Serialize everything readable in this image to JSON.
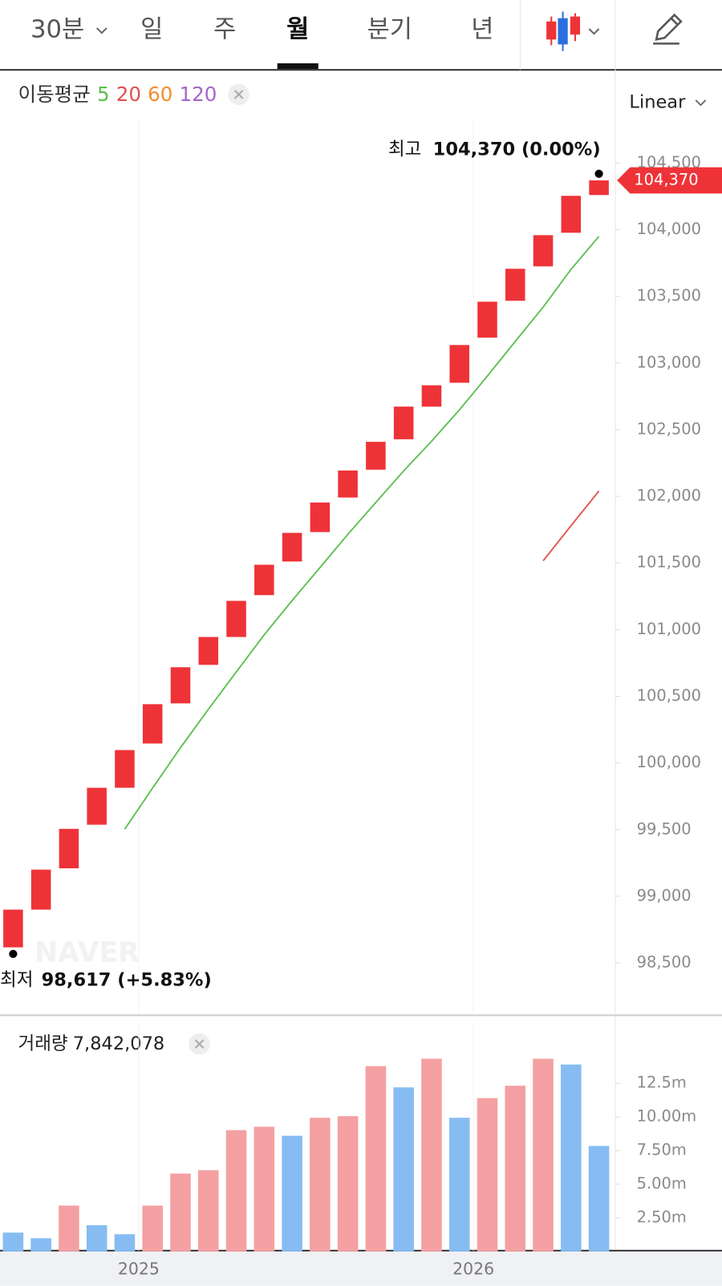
{
  "tabs": [
    "30분",
    "일",
    "주",
    "월",
    "분기",
    "년"
  ],
  "scale_mode": "Linear",
  "chart_data": [
    {
      "type": "candlestick",
      "title": "이동평균",
      "categories": [
        null,
        null,
        null,
        null,
        null,
        null,
        null,
        null,
        null,
        null,
        null,
        null,
        null,
        null,
        null,
        null,
        null,
        null,
        null,
        null,
        null,
        null
      ],
      "open": [
        98617,
        98900,
        99210,
        99537,
        99814,
        100146,
        100447,
        100736,
        100945,
        101259,
        101511,
        101732,
        101991,
        102200,
        102428,
        102673,
        102852,
        103190,
        103467,
        103725,
        103977,
        104260
      ],
      "close": [
        98900,
        99200,
        99506,
        99814,
        100097,
        100441,
        100718,
        100945,
        101216,
        101487,
        101726,
        101954,
        102194,
        102409,
        102673,
        102833,
        103135,
        103460,
        103707,
        103959,
        104254,
        104370
      ],
      "color": "#ee3338",
      "series": [
        {
          "name": "5",
          "color": "#5bbd4f",
          "values": [
            null,
            null,
            null,
            null,
            99503,
            99812,
            100115,
            100403,
            100683,
            100961,
            101218,
            101466,
            101715,
            101954,
            102191,
            102413,
            102649,
            102902,
            103162,
            103419,
            103703,
            103950
          ]
        },
        {
          "name": "20",
          "color": "#e0504e",
          "values": [
            null,
            null,
            null,
            null,
            null,
            null,
            null,
            null,
            null,
            null,
            null,
            null,
            null,
            null,
            null,
            null,
            null,
            null,
            null,
            101517,
            101780,
            102040
          ]
        },
        {
          "name": "60",
          "color": "#f0902e",
          "values": [
            null,
            null,
            null,
            null,
            null,
            null,
            null,
            null,
            null,
            null,
            null,
            null,
            null,
            null,
            null,
            null,
            null,
            null,
            null,
            null,
            null,
            null
          ]
        },
        {
          "name": "120",
          "color": "#a565c9",
          "values": [
            null,
            null,
            null,
            null,
            null,
            null,
            null,
            null,
            null,
            null,
            null,
            null,
            null,
            null,
            null,
            null,
            null,
            null,
            null,
            null,
            null,
            null
          ]
        }
      ],
      "ylim": [
        98120,
        104830
      ],
      "yticks": [
        {
          "value": 98500,
          "label": "98,500"
        },
        {
          "value": 99000,
          "label": "99,000"
        },
        {
          "value": 99500,
          "label": "99,500"
        },
        {
          "value": 100000,
          "label": "100,000"
        },
        {
          "value": 100500,
          "label": "100,500"
        },
        {
          "value": 101000,
          "label": "101,000"
        },
        {
          "value": 101500,
          "label": "101,500"
        },
        {
          "value": 102000,
          "label": "102,000"
        },
        {
          "value": 102500,
          "label": "102,500"
        },
        {
          "value": 103000,
          "label": "103,000"
        },
        {
          "value": 103500,
          "label": "103,500"
        },
        {
          "value": 104000,
          "label": "104,000"
        },
        {
          "value": 104500,
          "label": "104,500"
        }
      ],
      "high_label": "최고",
      "high_value": "104,370 (0.00%)",
      "low_label": "최저",
      "low_value": "98,617 (+5.83%)",
      "last_price_label": "104,370",
      "watermark": "NAVER"
    },
    {
      "type": "bar",
      "title": "거래량",
      "subtitle": "7,842,078",
      "categories": [
        null,
        null,
        null,
        null,
        null,
        null,
        null,
        null,
        null,
        null,
        null,
        null,
        null,
        null,
        null,
        null,
        null,
        null,
        null,
        null,
        null,
        null
      ],
      "values": [
        1400000,
        980000,
        3410000,
        1950000,
        1280000,
        3410000,
        5790000,
        6040000,
        9020000,
        9270000,
        8600000,
        9940000,
        10060000,
        13780000,
        12200000,
        14330000,
        9940000,
        11400000,
        12320000,
        14330000,
        13900000,
        7842078
      ],
      "colors": [
        "#86bcf2",
        "#86bcf2",
        "#f4a0a2",
        "#86bcf2",
        "#86bcf2",
        "#f4a0a2",
        "#f4a0a2",
        "#f4a0a2",
        "#f4a0a2",
        "#f4a0a2",
        "#86bcf2",
        "#f4a0a2",
        "#f4a0a2",
        "#f4a0a2",
        "#86bcf2",
        "#f4a0a2",
        "#86bcf2",
        "#f4a0a2",
        "#f4a0a2",
        "#f4a0a2",
        "#86bcf2",
        "#86bcf2"
      ],
      "ylim": [
        0,
        16830000
      ],
      "yticks": [
        {
          "value": 2500000,
          "label": "2.50m"
        },
        {
          "value": 5000000,
          "label": "5.00m"
        },
        {
          "value": 7500000,
          "label": "7.50m"
        },
        {
          "value": 10000000,
          "label": "10.00m"
        },
        {
          "value": 12500000,
          "label": "12.5m"
        }
      ],
      "xticks": [
        {
          "value": 4.5,
          "label": "2025"
        },
        {
          "value": 16.5,
          "label": "2026"
        }
      ]
    }
  ]
}
